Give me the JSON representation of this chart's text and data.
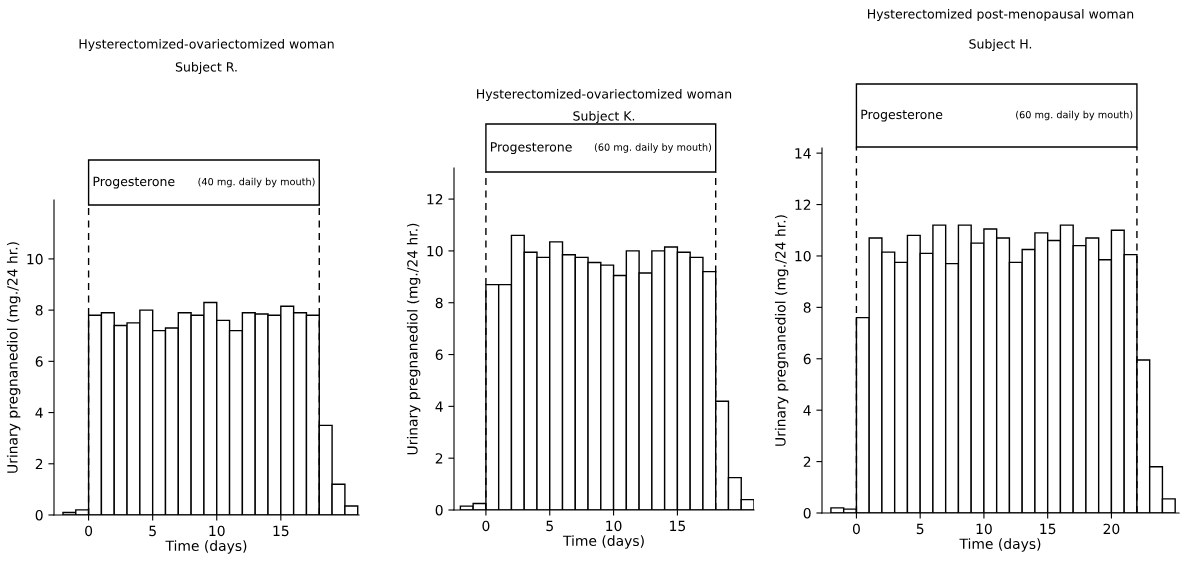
{
  "chart_data": [
    {
      "type": "histogram",
      "title": "Hysterectomized-ovariectomized woman",
      "subtitle": "Subject R.",
      "xlabel": "Time (days)",
      "ylabel": "Urinary pregnanediol (mg./24 hr.)",
      "bins": [
        -2,
        -1,
        0,
        1,
        2,
        3,
        4,
        5,
        6,
        7,
        8,
        9,
        10,
        11,
        12,
        13,
        14,
        15,
        16,
        17,
        18,
        19,
        20,
        21
      ],
      "values": [
        0.1,
        0.2,
        7.8,
        7.9,
        7.4,
        7.5,
        8.0,
        7.2,
        7.3,
        7.9,
        7.8,
        8.3,
        7.6,
        7.2,
        7.9,
        7.85,
        7.8,
        8.15,
        7.9,
        7.8,
        3.5,
        1.2,
        0.35
      ],
      "color": "#ffffff",
      "xlim": [
        -2.7,
        21.1
      ],
      "xticks": [
        0,
        5,
        10,
        15
      ],
      "ylim": [
        0,
        12.3
      ],
      "yticks": [
        0,
        2,
        4,
        6,
        8,
        10
      ],
      "ref_lines": [
        {
          "axis": "x",
          "value": 0,
          "color": "#000000",
          "line_style": "dashed"
        },
        {
          "axis": "x",
          "value": 18,
          "color": "#000000",
          "line_style": "dashed"
        }
      ],
      "annotations": [
        "Progesterone",
        "(40 mg. daily by mouth)"
      ],
      "grid": false,
      "legend": false
    },
    {
      "type": "histogram",
      "title": "Hysterectomized-ovariectomized woman",
      "subtitle": "Subject K.",
      "xlabel": "Time (days)",
      "ylabel": "Urinary pregnanediol (mg./24 hr.)",
      "bins": [
        -2,
        -1,
        0,
        1,
        2,
        3,
        4,
        5,
        6,
        7,
        8,
        9,
        10,
        11,
        12,
        13,
        14,
        15,
        16,
        17,
        18,
        19,
        20,
        21
      ],
      "values": [
        0.15,
        0.25,
        8.7,
        8.7,
        10.6,
        9.95,
        9.75,
        10.35,
        9.85,
        9.75,
        9.55,
        9.45,
        9.05,
        10.0,
        9.15,
        10.0,
        10.15,
        9.95,
        9.75,
        9.2,
        4.2,
        1.25,
        0.4
      ],
      "color": "#ffffff",
      "xlim": [
        -2.5,
        21
      ],
      "xticks": [
        0,
        5,
        10,
        15
      ],
      "ylim": [
        0,
        13.2
      ],
      "yticks": [
        0,
        2,
        4,
        6,
        8,
        10,
        12
      ],
      "ref_lines": [
        {
          "axis": "x",
          "value": 0,
          "color": "#000000",
          "line_style": "dashed"
        },
        {
          "axis": "x",
          "value": 18,
          "color": "#000000",
          "line_style": "dashed"
        }
      ],
      "annotations": [
        "Progesterone",
        "(60 mg. daily by mouth)"
      ],
      "grid": false,
      "legend": false
    },
    {
      "type": "histogram",
      "title": "Hysterectomized post-menopausal woman",
      "subtitle": "Subject H.",
      "xlabel": "Time (days)",
      "ylabel": "Urinary pregnanediol (mg./24 hr.)",
      "bins": [
        -2,
        -1,
        0,
        1,
        2,
        3,
        4,
        5,
        6,
        7,
        8,
        9,
        10,
        11,
        12,
        13,
        14,
        15,
        16,
        17,
        18,
        19,
        20,
        21,
        22,
        23,
        24,
        25
      ],
      "values": [
        0.2,
        0.15,
        7.6,
        10.7,
        10.15,
        9.75,
        10.8,
        10.1,
        11.2,
        9.7,
        11.2,
        10.5,
        11.05,
        10.7,
        9.75,
        10.25,
        10.9,
        10.6,
        11.2,
        10.4,
        10.7,
        9.85,
        11.0,
        10.05,
        5.95,
        1.8,
        0.55
      ],
      "color": "#ffffff",
      "xlim": [
        -2.7,
        25.3
      ],
      "xticks": [
        0,
        5,
        10,
        15,
        20
      ],
      "ylim": [
        0,
        14.2
      ],
      "yticks": [
        0,
        2,
        4,
        6,
        8,
        10,
        12,
        14
      ],
      "ref_lines": [
        {
          "axis": "x",
          "value": 0,
          "color": "#000000",
          "line_style": "dashed"
        },
        {
          "axis": "x",
          "value": 22,
          "color": "#000000",
          "line_style": "dashed"
        }
      ],
      "annotations": [
        "Progesterone",
        "(60 mg. daily by mouth)"
      ],
      "grid": false,
      "legend": false
    }
  ]
}
